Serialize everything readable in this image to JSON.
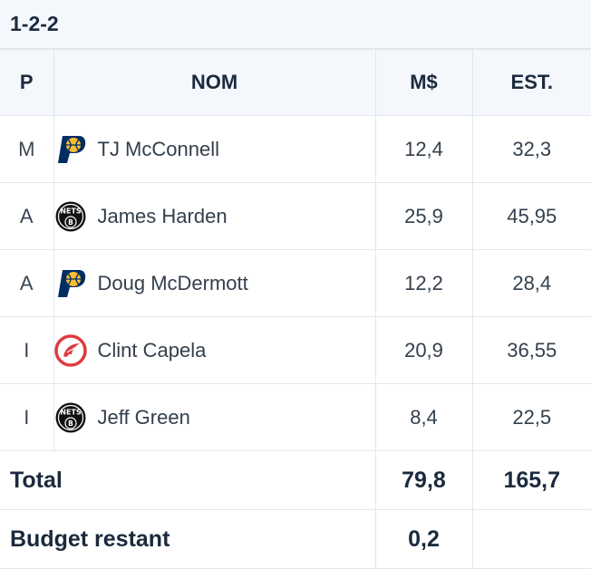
{
  "formation": "1-2-2",
  "headers": {
    "pos": "P",
    "name": "NOM",
    "salary": "M$",
    "estimate": "EST."
  },
  "players": [
    {
      "pos": "M",
      "name": "TJ McConnell",
      "team_icon": "pacers-logo-icon",
      "salary": "12,4",
      "estimate": "32,3"
    },
    {
      "pos": "A",
      "name": "James Harden",
      "team_icon": "nets-logo-icon",
      "salary": "25,9",
      "estimate": "45,95"
    },
    {
      "pos": "A",
      "name": "Doug McDermott",
      "team_icon": "pacers-logo-icon",
      "salary": "12,2",
      "estimate": "28,4"
    },
    {
      "pos": "I",
      "name": "Clint Capela",
      "team_icon": "hawks-logo-icon",
      "salary": "20,9",
      "estimate": "36,55"
    },
    {
      "pos": "I",
      "name": "Jeff Green",
      "team_icon": "nets-logo-icon",
      "salary": "8,4",
      "estimate": "22,5"
    }
  ],
  "totals": {
    "label": "Total",
    "salary": "79,8",
    "estimate": "165,7"
  },
  "budget": {
    "label": "Budget restant",
    "value": "0,2"
  },
  "colors": {
    "header_bg": "#f4f7fb",
    "border": "#e2e6ea",
    "text": "#1b2a3d",
    "pacers_navy": "#002d62",
    "pacers_gold": "#fdbb30",
    "hawks_red": "#e03a3e"
  }
}
